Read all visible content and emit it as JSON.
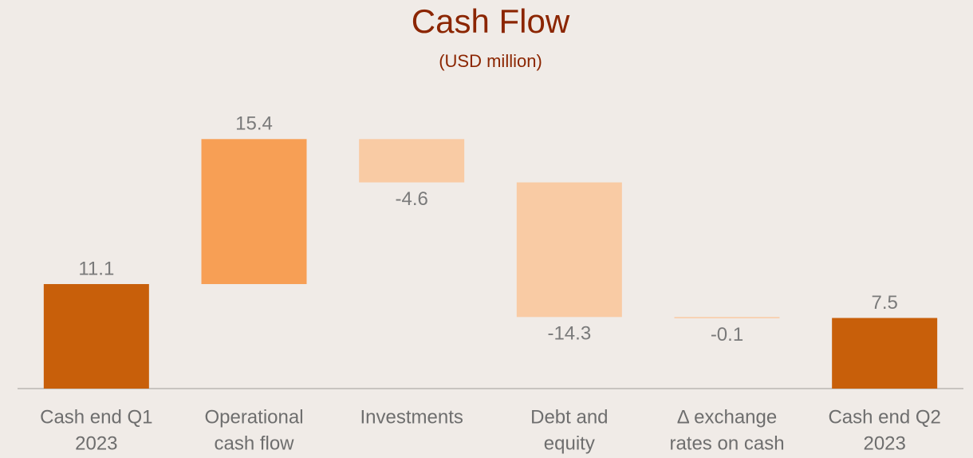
{
  "chart_data": {
    "type": "waterfall",
    "title": "Cash Flow",
    "subtitle": "(USD million)",
    "categories": [
      [
        "Cash end Q1",
        "2023"
      ],
      [
        "Operational",
        "cash flow"
      ],
      [
        "Investments"
      ],
      [
        "Debt and",
        "equity"
      ],
      [
        "Δ exchange",
        "rates on cash"
      ],
      [
        "Cash end Q2",
        "2023"
      ]
    ],
    "values": [
      11.1,
      15.4,
      -4.6,
      -14.3,
      -0.1,
      7.5
    ],
    "measure": [
      "total",
      "relative",
      "relative",
      "relative",
      "relative",
      "total"
    ],
    "colors": {
      "total": "#c85f0a",
      "increase": "#f79f55",
      "decrease": "#f9cba4"
    },
    "ylim": [
      0,
      30
    ]
  }
}
